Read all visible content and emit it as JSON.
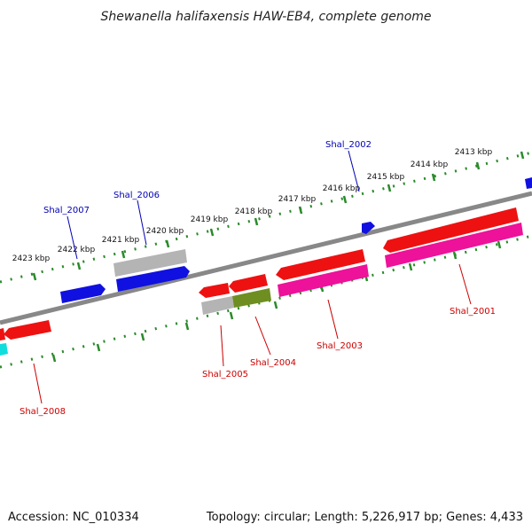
{
  "title": "Shewanella halifaxensis HAW-EB4, complete genome",
  "footer": {
    "accession": "Accession: NC_010334",
    "summary": "Topology: circular; Length: 5,226,917 bp; Genes: 4,433"
  },
  "colors": {
    "backbone": "#888888",
    "tick_track": "#2a8a2a",
    "label_forward": "#0000b4",
    "label_reverse": "#cc0000",
    "gene_blue": "#1010e0",
    "gene_red": "#ee1111",
    "gene_magenta": "#ee1199",
    "gene_gray": "#b4b4b4",
    "gene_olive": "#6e8e22",
    "gene_cyan": "#11dddd"
  },
  "scale_labels": [
    "2413 kbp",
    "2414 kbp",
    "2415 kbp",
    "2416 kbp",
    "2417 kbp",
    "2418 kbp",
    "2419 kbp",
    "2420 kbp",
    "2421 kbp",
    "2422 kbp",
    "2423 kbp"
  ],
  "forward_labels": [
    "Shal_2002",
    "Shal_2006",
    "Shal_2007"
  ],
  "reverse_labels": [
    "Shal_2001",
    "Shal_2003",
    "Shal_2004",
    "Shal_2005",
    "Shal_2008"
  ]
}
